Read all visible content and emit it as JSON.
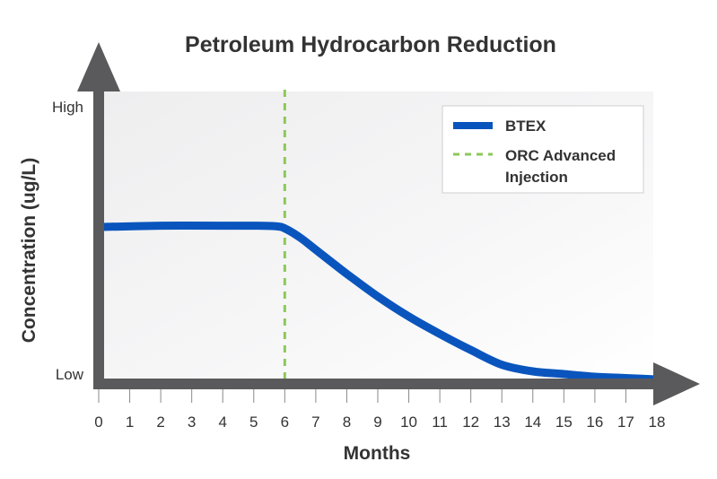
{
  "chart_data": {
    "type": "line",
    "title": "Petroleum Hydrocarbon Reduction",
    "xlabel": "Months",
    "ylabel": "Concentration (ug/L)",
    "xlim": [
      0,
      18
    ],
    "xticks": [
      "0",
      "1",
      "2",
      "3",
      "4",
      "5",
      "6",
      "7",
      "8",
      "9",
      "10",
      "11",
      "12",
      "13",
      "14",
      "15",
      "16",
      "17",
      "18"
    ],
    "ylim": [
      0,
      1
    ],
    "yticks": [
      {
        "value": 0,
        "label": "Low"
      },
      {
        "value": 1,
        "label": "High"
      }
    ],
    "grid": false,
    "legend_position": "top-right",
    "series": [
      {
        "name": "BTEX",
        "color": "#0a55bd",
        "style": "solid",
        "x": [
          0,
          2,
          4,
          5,
          5.7,
          6,
          6.5,
          7,
          8,
          9,
          10,
          11,
          12,
          13,
          14,
          15,
          16,
          17,
          18
        ],
        "y": [
          0.55,
          0.555,
          0.555,
          0.555,
          0.553,
          0.545,
          0.51,
          0.465,
          0.375,
          0.29,
          0.215,
          0.15,
          0.09,
          0.035,
          0.01,
          0.0,
          -0.01,
          -0.015,
          -0.02
        ]
      }
    ],
    "annotations": [
      {
        "type": "vline",
        "x": 6,
        "name": "ORC Advanced Injection",
        "color": "#8cc85a",
        "style": "dashed"
      }
    ],
    "legend": [
      {
        "label": "BTEX",
        "color": "#0a55bd",
        "style": "solid"
      },
      {
        "label_lines": [
          "ORC Advanced",
          "Injection"
        ],
        "color": "#8cc85a",
        "style": "dashed"
      }
    ]
  }
}
